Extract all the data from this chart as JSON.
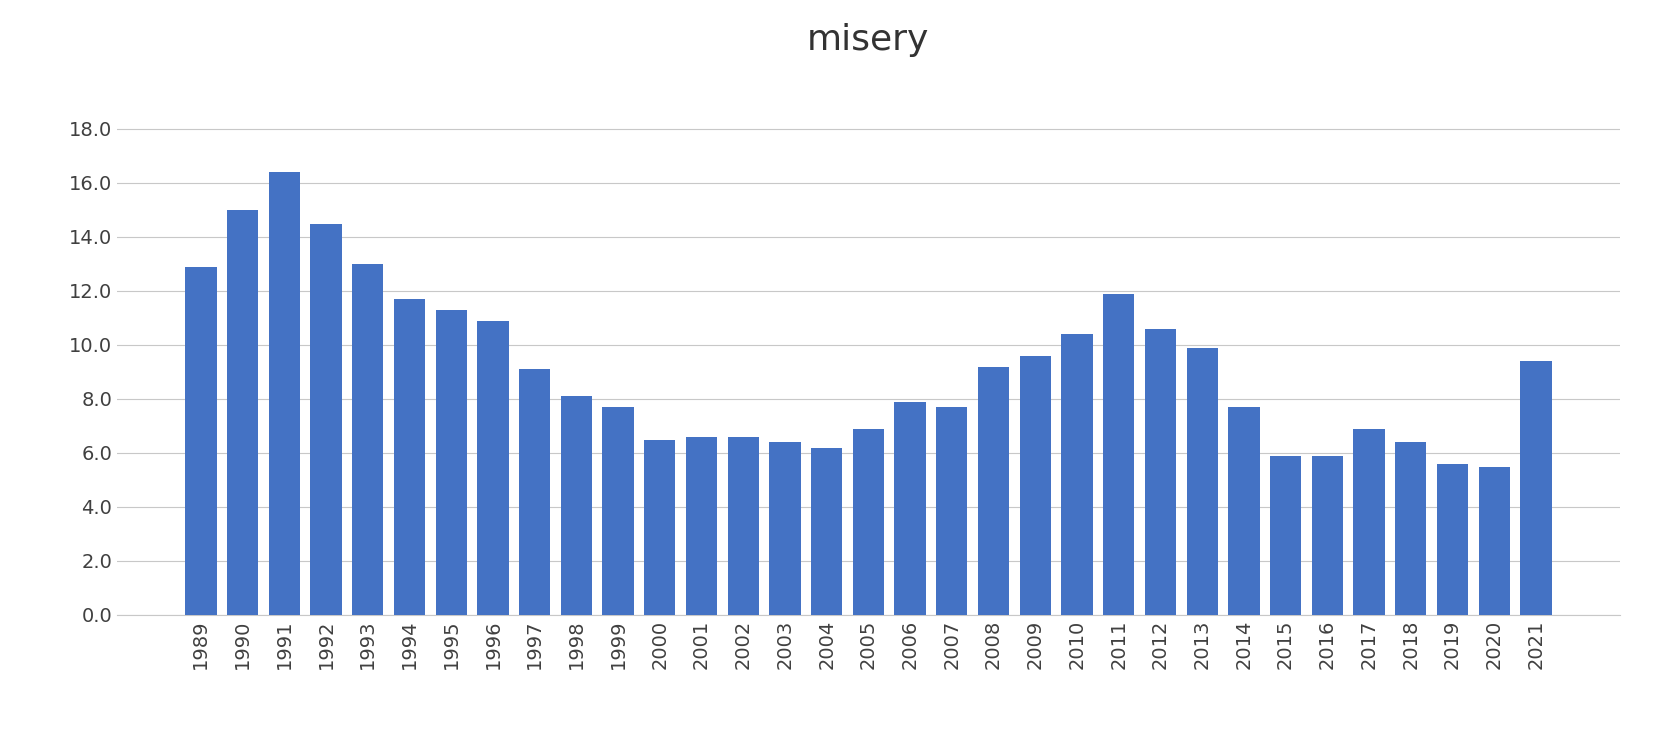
{
  "title": "misery",
  "title_fontsize": 26,
  "years": [
    1989,
    1990,
    1991,
    1992,
    1993,
    1994,
    1995,
    1996,
    1997,
    1998,
    1999,
    2000,
    2001,
    2002,
    2003,
    2004,
    2005,
    2006,
    2007,
    2008,
    2009,
    2010,
    2011,
    2012,
    2013,
    2014,
    2015,
    2016,
    2017,
    2018,
    2019,
    2020,
    2021
  ],
  "values": [
    12.9,
    15.0,
    16.4,
    14.5,
    13.0,
    11.7,
    11.3,
    10.9,
    9.1,
    8.1,
    7.7,
    6.5,
    6.6,
    6.6,
    6.4,
    6.2,
    6.9,
    7.9,
    7.7,
    9.2,
    9.6,
    10.4,
    11.9,
    10.6,
    9.9,
    7.7,
    5.9,
    5.9,
    6.9,
    6.4,
    5.6,
    5.5,
    9.4
  ],
  "bar_color": "#4472c4",
  "ylim": [
    0,
    20
  ],
  "yticks": [
    0.0,
    2.0,
    4.0,
    6.0,
    8.0,
    10.0,
    12.0,
    14.0,
    16.0,
    18.0
  ],
  "grid_color": "#c8c8c8",
  "background_color": "#ffffff",
  "tick_label_fontsize": 14,
  "ytick_color": "#404040",
  "xtick_color": "#404040"
}
